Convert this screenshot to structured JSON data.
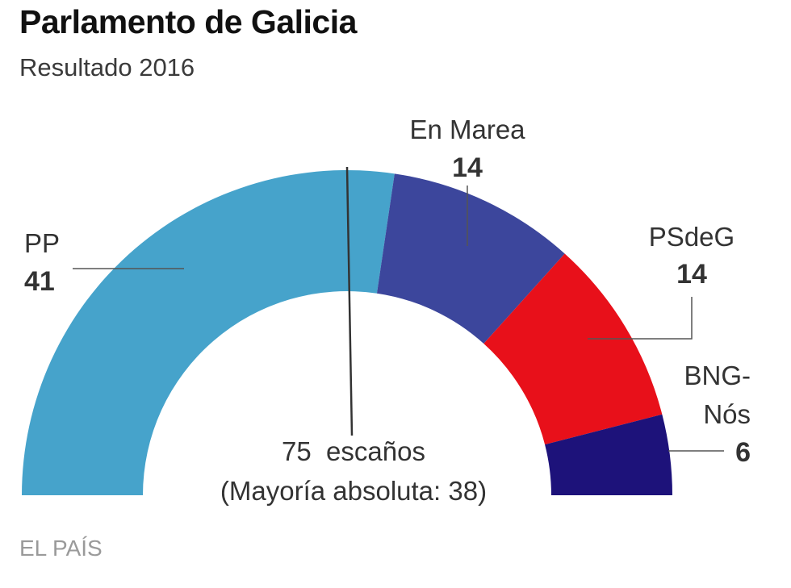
{
  "header": {
    "title": "Parlamento de Galicia",
    "subtitle": "Resultado 2016"
  },
  "footer": {
    "source": "EL PAÍS"
  },
  "chart_data": {
    "type": "pie",
    "subtype": "parliament-semicircle",
    "total": 75,
    "total_label": "75  escaños",
    "majority": 38,
    "majority_label": "(Mayoría absoluta: 38)",
    "series": [
      {
        "name": "PP",
        "value": 41,
        "color": "#46a3cb",
        "label_lines": [
          "PP"
        ]
      },
      {
        "name": "En Marea",
        "value": 14,
        "color": "#3c469c",
        "label_lines": [
          "En Marea"
        ]
      },
      {
        "name": "PSdeG",
        "value": 14,
        "color": "#e8101a",
        "label_lines": [
          "PSdeG"
        ]
      },
      {
        "name": "BNG-Nós",
        "value": 6,
        "color": "#1d127a",
        "label_lines": [
          "BNG-",
          "Nós"
        ]
      }
    ]
  }
}
